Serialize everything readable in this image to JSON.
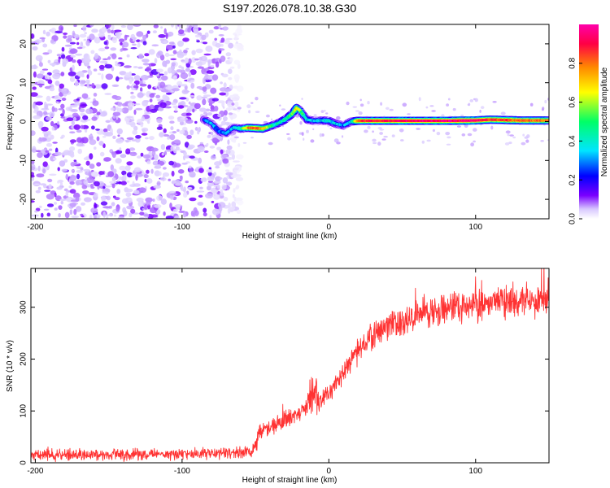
{
  "figure_title": "S197.2026.078.10.38.G30",
  "chart_data": [
    {
      "type": "heatmap",
      "title": "S197.2026.078.10.38.G30",
      "xlabel": "Height of straight line (km)",
      "ylabel": "Frequency (Hz)",
      "xlim": [
        -203,
        150
      ],
      "ylim": [
        -25,
        25
      ],
      "xticks": [
        -200,
        -100,
        0,
        100
      ],
      "yticks": [
        -20,
        -10,
        0,
        10,
        20
      ],
      "colorbar": {
        "label": "Normalized spectral amplitude",
        "range": [
          0.0,
          1.0
        ],
        "ticks": [
          0.0,
          0.2,
          0.4,
          0.6,
          0.8
        ],
        "colormap": [
          "#ffffff",
          "#d8c8ff",
          "#7a00ff",
          "#0000ff",
          "#00e5ff",
          "#00ff66",
          "#ffff00",
          "#ff8800",
          "#ff0044",
          "#ff00aa"
        ]
      },
      "noise_region_x": [
        -200,
        -60
      ],
      "ridge": {
        "x": [
          -85,
          -80,
          -75,
          -70,
          -65,
          -60,
          -55,
          -50,
          -45,
          -40,
          -35,
          -30,
          -25,
          -22,
          -20,
          -18,
          -15,
          -10,
          -5,
          0,
          5,
          10,
          15,
          20,
          40,
          60,
          80,
          100,
          110,
          120,
          130,
          140,
          150
        ],
        "freq": [
          0.5,
          -0.5,
          -2.5,
          -3.0,
          -1.5,
          -1.8,
          -1.6,
          -1.7,
          -1.8,
          -1.2,
          -0.5,
          0.5,
          2.0,
          3.5,
          3.0,
          2.0,
          0.5,
          0.2,
          0.3,
          0.2,
          -0.6,
          -1.0,
          0.0,
          0.2,
          0.2,
          0.2,
          0.2,
          0.3,
          0.5,
          0.4,
          0.3,
          0.3,
          0.3
        ],
        "amp": [
          0.25,
          0.3,
          0.3,
          0.3,
          0.3,
          0.45,
          0.75,
          0.85,
          0.75,
          0.5,
          0.4,
          0.45,
          0.55,
          0.7,
          0.6,
          0.5,
          0.35,
          0.35,
          0.35,
          0.4,
          0.35,
          0.3,
          0.35,
          0.85,
          0.9,
          0.92,
          0.95,
          0.95,
          0.85,
          0.85,
          0.82,
          0.8,
          0.8
        ]
      }
    },
    {
      "type": "line",
      "xlabel": "Height of straight line (km)",
      "ylabel": "SNR (10 * v/v)",
      "xlim": [
        -203,
        150
      ],
      "ylim": [
        0,
        375
      ],
      "xticks": [
        -200,
        -100,
        0,
        100
      ],
      "yticks": [
        0,
        100,
        200,
        300
      ],
      "color": "#ff3333",
      "series": [
        {
          "name": "SNR",
          "x": [
            -200,
            -150,
            -100,
            -60,
            -52,
            -48,
            -45,
            -35,
            -25,
            -15,
            -12,
            -5,
            0,
            10,
            20,
            30,
            40,
            50,
            60,
            80,
            100,
            120,
            140,
            150
          ],
          "mean": [
            15,
            15,
            17,
            20,
            22,
            55,
            60,
            75,
            90,
            105,
            130,
            120,
            135,
            175,
            215,
            245,
            265,
            275,
            285,
            300,
            305,
            310,
            318,
            320
          ],
          "spread": [
            14,
            14,
            14,
            14,
            14,
            30,
            22,
            22,
            22,
            22,
            60,
            22,
            22,
            25,
            28,
            30,
            32,
            35,
            35,
            38,
            40,
            40,
            42,
            42
          ]
        }
      ]
    }
  ]
}
